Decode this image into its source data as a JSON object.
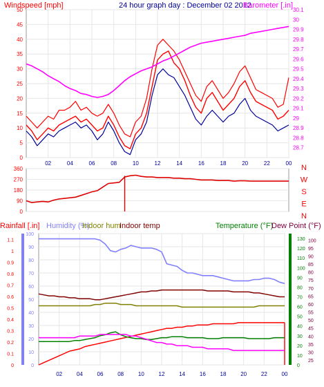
{
  "header": {
    "left_label": "Windspeed [mph]",
    "title": "24 hour graph day : December 02 2012",
    "right_label": "Barometer [.in]"
  },
  "colors": {
    "background": "#ffffff",
    "grid": "#e6e6e6",
    "windspeed": "#ff0000",
    "windspeed_avg": "#000099",
    "barometer": "#ff00ff",
    "direction": "#dd0000",
    "rainfall": "#ff0000",
    "humidity": "#8080ff",
    "indoor_hum": "#808000",
    "indoor_temp": "#800000",
    "temperature": "#008000",
    "dew_point": "#800040"
  },
  "chart_data": [
    {
      "type": "line",
      "title": "24 hour graph day : December 02 2012",
      "xlabel": "",
      "ylabel": "Windspeed [mph]",
      "y2label": "Barometer [.in]",
      "x": [
        0,
        0.5,
        1,
        1.5,
        2,
        2.5,
        3,
        3.5,
        4,
        4.5,
        5,
        5.5,
        6,
        6.5,
        7,
        7.5,
        8,
        8.5,
        9,
        9.5,
        10,
        10.5,
        11,
        11.5,
        12,
        12.5,
        13,
        13.5,
        14,
        14.5,
        15,
        15.5,
        16,
        16.5,
        17,
        17.5,
        18,
        18.5,
        19,
        19.5,
        20,
        20.5,
        21,
        21.5,
        22,
        22.5,
        23,
        23.5,
        24
      ],
      "x_ticks": [
        "02",
        "04",
        "06",
        "08",
        "10",
        "12",
        "14",
        "16",
        "18",
        "20",
        "22",
        "00"
      ],
      "xlim": [
        0,
        24
      ],
      "ylim": [
        0,
        50
      ],
      "y_ticks": [
        0,
        5,
        10,
        15,
        20,
        25,
        30,
        35,
        40,
        45,
        50
      ],
      "y2lim": [
        28.6,
        30.1
      ],
      "y2_ticks": [
        "28.7",
        "28.8",
        "28.9",
        "29",
        "29.1",
        "29.2",
        "29.3",
        "29.4",
        "29.5",
        "29.6",
        "29.7",
        "29.8",
        "29.9",
        "30",
        "30.1"
      ],
      "grid": true,
      "series": [
        {
          "name": "Windspeed [mph]",
          "axis": "left",
          "values": [
            11,
            9,
            6,
            8,
            10,
            9,
            11,
            12,
            13,
            14,
            12,
            13,
            11,
            9,
            10,
            14,
            11,
            7,
            4,
            3,
            8,
            10,
            15,
            24,
            33,
            35,
            36,
            32,
            30,
            26,
            21,
            17,
            15,
            20,
            22,
            19,
            16,
            18,
            20,
            24,
            26,
            22,
            19,
            18,
            17,
            16,
            13,
            14,
            16
          ]
        },
        {
          "name": "Gust",
          "axis": "left",
          "values": [
            14,
            12,
            10,
            12,
            14,
            13,
            16,
            16,
            17,
            19,
            16,
            17,
            15,
            14,
            15,
            18,
            15,
            11,
            8,
            7,
            12,
            14,
            20,
            30,
            38,
            40,
            38,
            36,
            33,
            29,
            25,
            21,
            19,
            24,
            26,
            23,
            20,
            22,
            25,
            29,
            31,
            27,
            23,
            22,
            21,
            20,
            17,
            18,
            27
          ]
        },
        {
          "name": "Average",
          "axis": "left",
          "values": [
            9,
            7,
            4,
            6,
            8,
            7,
            9,
            10,
            11,
            12,
            10,
            11,
            9,
            6,
            8,
            12,
            9,
            5,
            2,
            1,
            6,
            8,
            12,
            21,
            28,
            30,
            28,
            27,
            24,
            21,
            17,
            13,
            11,
            14,
            16,
            14,
            12,
            14,
            15,
            18,
            20,
            16,
            14,
            13,
            12,
            11,
            9,
            10,
            11
          ]
        },
        {
          "name": "Barometer [.in]",
          "axis": "right",
          "values": [
            29.55,
            29.53,
            29.5,
            29.47,
            29.43,
            29.4,
            29.37,
            29.33,
            29.3,
            29.28,
            29.25,
            29.24,
            29.22,
            29.21,
            29.22,
            29.24,
            29.28,
            29.33,
            29.38,
            29.42,
            29.45,
            29.48,
            29.5,
            29.52,
            29.55,
            29.58,
            29.6,
            29.63,
            29.66,
            29.69,
            29.72,
            29.74,
            29.76,
            29.77,
            29.78,
            29.79,
            29.8,
            29.81,
            29.82,
            29.83,
            29.84,
            29.86,
            29.87,
            29.88,
            29.89,
            29.9,
            29.91,
            29.92,
            29.93
          ]
        }
      ]
    },
    {
      "type": "line",
      "xlabel": "",
      "ylabel": "",
      "xlim": [
        0,
        24
      ],
      "ylim": [
        0,
        360
      ],
      "y_ticks": [
        "0",
        "90",
        "180",
        "270",
        "360"
      ],
      "right_labels": [
        "N",
        "W",
        "S",
        "E",
        "N"
      ],
      "grid": true,
      "x": [
        0,
        0.5,
        1,
        1.5,
        2,
        2.5,
        3,
        3.5,
        4,
        4.5,
        5,
        5.5,
        6,
        6.5,
        7,
        7.5,
        8,
        8.5,
        9,
        9.5,
        10,
        10.5,
        11,
        11.5,
        12,
        12.5,
        13,
        13.5,
        14,
        14.5,
        15,
        15.5,
        16,
        16.5,
        17,
        17.5,
        18,
        18.5,
        19,
        19.5,
        20,
        20.5,
        21,
        21.5,
        22,
        22.5,
        23,
        23.5,
        24
      ],
      "series": [
        {
          "name": "Wind direction",
          "values": [
            90,
            75,
            80,
            85,
            80,
            95,
            105,
            110,
            115,
            120,
            135,
            150,
            165,
            175,
            205,
            235,
            240,
            245,
            290,
            300,
            305,
            295,
            290,
            290,
            285,
            285,
            285,
            280,
            280,
            275,
            275,
            270,
            265,
            265,
            265,
            260,
            260,
            260,
            255,
            258,
            258,
            255,
            255,
            255,
            255,
            255,
            255,
            255,
            255
          ]
        }
      ]
    },
    {
      "type": "line",
      "labels": {
        "rainfall": "Rainfall [.in]",
        "humidity": "Humidity (%)",
        "indoor_hum": "Indoor hum",
        "indoor_temp": "Indoor temp",
        "temperature": "Temperature (°F)",
        "dew_point": "Dew Point (°F)"
      },
      "xlim": [
        0,
        24
      ],
      "x_ticks": [
        "02",
        "04",
        "06",
        "08",
        "10",
        "12",
        "14",
        "16",
        "18",
        "20",
        "22",
        "00"
      ],
      "y_left_outer": {
        "label": "Rainfall [.in]",
        "lim": [
          0,
          1.15
        ],
        "ticks": [
          "0",
          "0.1",
          "0.2",
          "0.3",
          "0.4",
          "0.5",
          "0.6",
          "0.7",
          "0.8",
          "0.9",
          "1",
          "1.1"
        ]
      },
      "y_left_inner": {
        "label": "Humidity (%)",
        "lim": [
          0,
          100
        ],
        "ticks": [
          "0",
          "10",
          "20",
          "30",
          "40",
          "50",
          "60",
          "70",
          "80",
          "90",
          "100"
        ]
      },
      "y_right_inner": {
        "label": "Temperature (°F)",
        "lim": [
          0,
          135
        ],
        "ticks": [
          "0",
          "10",
          "20",
          "30",
          "40",
          "50",
          "60",
          "70",
          "80",
          "90",
          "100",
          "110",
          "120",
          "130"
        ]
      },
      "y_right_outer": {
        "label": "Dew Point (°F)",
        "lim": [
          22,
          104
        ],
        "ticks": [
          "25",
          "30",
          "35",
          "40",
          "45",
          "50",
          "55",
          "60",
          "65",
          "70",
          "75",
          "80",
          "85",
          "90",
          "95",
          "100"
        ]
      },
      "grid": true,
      "x": [
        0,
        0.5,
        1,
        1.5,
        2,
        2.5,
        3,
        3.5,
        4,
        4.5,
        5,
        5.5,
        6,
        6.5,
        7,
        7.5,
        8,
        8.5,
        9,
        9.5,
        10,
        10.5,
        11,
        11.5,
        12,
        12.5,
        13,
        13.5,
        14,
        14.5,
        15,
        15.5,
        16,
        16.5,
        17,
        17.5,
        18,
        18.5,
        19,
        19.5,
        20,
        20.5,
        21,
        21.5,
        22,
        22.5,
        23,
        23.5,
        24
      ],
      "series": [
        {
          "name": "Humidity (%)",
          "axis": "left_inner",
          "values": [
            96,
            96,
            96,
            96,
            96,
            96,
            96,
            96,
            96,
            96,
            96,
            96,
            95,
            92,
            87,
            86,
            88,
            89,
            91,
            90,
            89,
            89,
            89,
            88,
            86,
            77,
            76,
            75,
            72,
            70,
            70,
            69,
            68,
            68,
            68,
            67,
            66,
            65,
            64,
            64,
            64,
            64,
            65,
            65,
            66,
            66,
            65,
            63,
            62
          ]
        },
        {
          "name": "Rainfall [.in]",
          "axis": "left_outer",
          "values": [
            0,
            0.02,
            0.04,
            0.06,
            0.08,
            0.1,
            0.12,
            0.13,
            0.14,
            0.16,
            0.17,
            0.18,
            0.19,
            0.2,
            0.21,
            0.22,
            0.23,
            0.24,
            0.25,
            0.26,
            0.27,
            0.28,
            0.29,
            0.3,
            0.31,
            0.32,
            0.32,
            0.33,
            0.33,
            0.34,
            0.34,
            0.35,
            0.35,
            0.35,
            0.36,
            0.36,
            0.36,
            0.36,
            0.36,
            0.37,
            0.37,
            0.37,
            0.37,
            0.37,
            0.37,
            0.37,
            0.37,
            0.37,
            0.37
          ]
        },
        {
          "name": "Indoor hum",
          "axis": "left_inner",
          "values": [
            45,
            45,
            45,
            45,
            45,
            45,
            45,
            45,
            45,
            45,
            45,
            46,
            46,
            47,
            47,
            47,
            46,
            46,
            46,
            45,
            45,
            45,
            45,
            45,
            45,
            45,
            45,
            45,
            44,
            44,
            44,
            44,
            44,
            44,
            44,
            44,
            44,
            44,
            44,
            44,
            44,
            44,
            44,
            45,
            45,
            45,
            45,
            45,
            45
          ]
        },
        {
          "name": "Indoor temp",
          "axis": "right_inner",
          "values": [
            73,
            72,
            71,
            71,
            70,
            70,
            69,
            69,
            68,
            68,
            68,
            67,
            67,
            68,
            69,
            70,
            71,
            72,
            73,
            74,
            75,
            75,
            76,
            76,
            77,
            77,
            77,
            77,
            77,
            77,
            77,
            77,
            77,
            76,
            76,
            76,
            76,
            76,
            75,
            75,
            75,
            75,
            74,
            74,
            73,
            72,
            71,
            70,
            70
          ]
        },
        {
          "name": "Temperature (°F)",
          "axis": "right_inner",
          "values": [
            24,
            24,
            24,
            24,
            24,
            24,
            24,
            25,
            25,
            26,
            27,
            28,
            30,
            31,
            33,
            34,
            31,
            29,
            28,
            27,
            27,
            26,
            26,
            27,
            28,
            28,
            29,
            29,
            29,
            28,
            28,
            28,
            28,
            27,
            27,
            27,
            28,
            28,
            28,
            28,
            28,
            27,
            27,
            27,
            27,
            27,
            28,
            28,
            28
          ]
        },
        {
          "name": "Dew Point (°F)",
          "axis": "right_outer",
          "values": [
            39,
            39,
            39,
            39,
            39,
            39,
            39,
            39,
            40,
            40,
            40,
            40,
            41,
            41,
            41,
            41,
            41,
            41,
            40,
            40,
            39,
            38,
            37,
            36,
            36,
            35,
            35,
            34,
            34,
            34,
            33,
            33,
            33,
            32,
            32,
            32,
            32,
            32,
            31,
            31,
            31,
            31,
            31,
            31,
            31,
            31,
            31,
            31,
            31
          ]
        }
      ]
    }
  ]
}
